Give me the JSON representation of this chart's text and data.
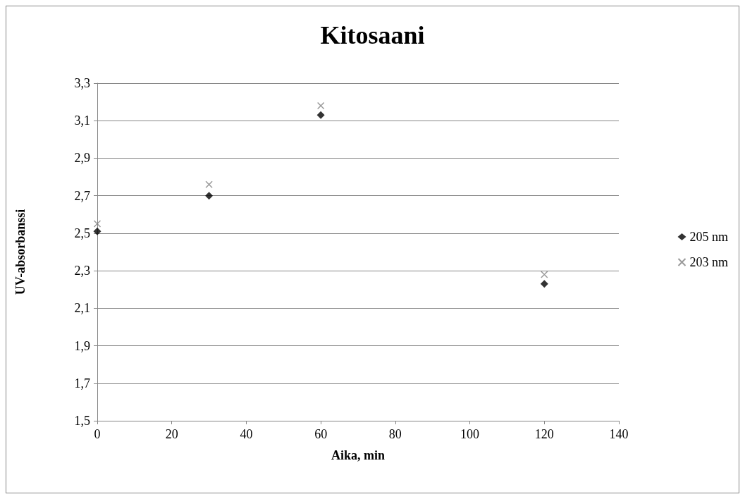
{
  "chart_data": {
    "type": "scatter",
    "title": "Kitosaani",
    "xlabel": "Aika, min",
    "ylabel": "UV-absorbanssi",
    "x": [
      0,
      30,
      60,
      120
    ],
    "series": [
      {
        "name": "205 nm",
        "color": "#000000",
        "marker": "diamond",
        "values": [
          2.51,
          2.7,
          3.13,
          2.23
        ]
      },
      {
        "name": "203 nm",
        "color": "#808080",
        "marker": "cross",
        "values": [
          2.55,
          2.76,
          3.18,
          2.28
        ]
      }
    ],
    "xlim": [
      0,
      140
    ],
    "xticks": [
      0,
      20,
      40,
      60,
      80,
      100,
      120,
      140
    ],
    "ylim": [
      1.5,
      3.3
    ],
    "yticks": [
      {
        "value": 1.5,
        "label": "1,5"
      },
      {
        "value": 1.7,
        "label": "1,7"
      },
      {
        "value": 1.9,
        "label": "1,9"
      },
      {
        "value": 2.1,
        "label": "2,1"
      },
      {
        "value": 2.3,
        "label": "2,3"
      },
      {
        "value": 2.5,
        "label": "2,5"
      },
      {
        "value": 2.7,
        "label": "2,7"
      },
      {
        "value": 2.9,
        "label": "2,9"
      },
      {
        "value": 3.1,
        "label": "3,1"
      },
      {
        "value": 3.3,
        "label": "3,3"
      }
    ],
    "grid": "y",
    "legend": "right"
  }
}
